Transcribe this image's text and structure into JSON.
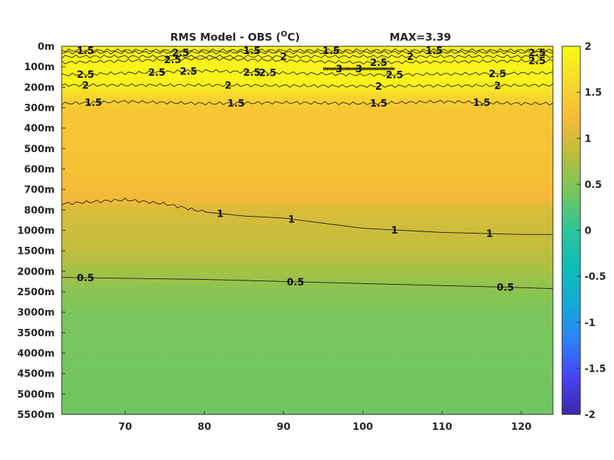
{
  "chart_data": {
    "type": "heatmap",
    "title": "RMS Model - OBS (",
    "title_unit": "O",
    "title_close": "C)",
    "max_label": "MAX=3.39",
    "xlabel": "",
    "ylabel": "",
    "xlim": [
      62,
      124
    ],
    "x_ticks": [
      70,
      80,
      90,
      100,
      110,
      120
    ],
    "x_tick_labels": [
      "70",
      "80",
      "90",
      "100",
      "110",
      "120"
    ],
    "y_tick_labels": [
      "0m",
      "100m",
      "200m",
      "300m",
      "400m",
      "500m",
      "600m",
      "700m",
      "800m",
      "1000m",
      "1500m",
      "2000m",
      "2500m",
      "3000m",
      "3500m",
      "4000m",
      "4500m",
      "5000m",
      "5500m"
    ],
    "colorbar": {
      "clim": [
        -2,
        2
      ],
      "ticks": [
        2,
        1.5,
        1,
        0.5,
        0,
        -0.5,
        -1,
        -1.5,
        -2
      ],
      "tick_labels": [
        "2",
        "1.5",
        "1",
        "0.5",
        "0",
        "-0.5",
        "-1",
        "-1.5",
        "-2"
      ],
      "colormap": "parula",
      "colors": [
        "#3e26a8",
        "#4743f4",
        "#2d81f8",
        "#15aad6",
        "#0fbcb8",
        "#2cc59a",
        "#71c65f",
        "#b6bf3c",
        "#f5b939",
        "#f8d82c",
        "#f9fb15"
      ]
    },
    "depth_profile": [
      {
        "level": 0,
        "value": 1.9
      },
      {
        "level": 1,
        "value": 1.9
      },
      {
        "level": 1.8,
        "value": 1.9
      },
      {
        "level": 2.4,
        "value": 1.6
      },
      {
        "level": 3,
        "value": 1.38
      },
      {
        "level": 6,
        "value": 1.32
      },
      {
        "level": 7.5,
        "value": 1.2
      },
      {
        "level": 8,
        "value": 1.02
      },
      {
        "level": 10,
        "value": 0.86
      },
      {
        "level": 11,
        "value": 0.7
      },
      {
        "level": 12,
        "value": 0.55
      },
      {
        "level": 13,
        "value": 0.45
      },
      {
        "level": 18,
        "value": 0.38
      }
    ],
    "contours": [
      {
        "value": 0.5,
        "label": "0.5",
        "x": [
          62,
          80,
          90,
          100,
          110,
          120,
          124
        ],
        "y_level": [
          11.3,
          11.4,
          11.5,
          11.6,
          11.7,
          11.8,
          11.85
        ],
        "labels_at": [
          65,
          91.5,
          118
        ]
      },
      {
        "value": 1,
        "label": "1",
        "x": [
          62,
          70,
          75,
          80,
          85,
          90,
          100,
          110,
          120,
          124
        ],
        "y_level": [
          7.7,
          7.5,
          7.7,
          8.1,
          8.3,
          8.4,
          8.9,
          9.1,
          9.2,
          9.2
        ],
        "labels_at": [
          82,
          91,
          104,
          116
        ]
      },
      {
        "value": 1.5,
        "label": "1.5",
        "x": [
          62,
          70,
          80,
          90,
          100,
          110,
          120,
          124
        ],
        "y_level": [
          2.8,
          2.7,
          2.8,
          2.75,
          2.8,
          2.7,
          2.8,
          2.8
        ],
        "labels_at": [
          66,
          84,
          102,
          115
        ]
      },
      {
        "value": 2,
        "label": "2",
        "x": [
          62,
          80,
          100,
          124
        ],
        "y_level": [
          1.9,
          1.9,
          1.95,
          1.9
        ],
        "labels_at": [
          65,
          83,
          102,
          117
        ]
      },
      {
        "value": 2.5,
        "label": "2.5",
        "x": [
          62,
          80,
          100,
          124
        ],
        "y_level": [
          1.4,
          1.2,
          1.4,
          1.3
        ],
        "labels_at": [
          65,
          74,
          78,
          86,
          88,
          104,
          117
        ]
      },
      {
        "value": 2.5,
        "label": "2.5",
        "x": [
          62,
          80,
          100,
          124
        ],
        "y_level": [
          0.8,
          0.6,
          0.8,
          0.7
        ],
        "labels_at": [
          76,
          102,
          122
        ]
      },
      {
        "value": 1.5,
        "label": "1.5",
        "x": [
          62,
          80,
          100,
          124
        ],
        "y_level": [
          0.2,
          0.2,
          0.2,
          0.2
        ],
        "labels_at": [
          65,
          86,
          96,
          109
        ]
      },
      {
        "value": 2.5,
        "label": "2.5",
        "x": [
          62,
          80,
          100,
          124
        ],
        "y_level": [
          0.3,
          0.3,
          0.3,
          0.3
        ],
        "labels_at": [
          77,
          122
        ]
      },
      {
        "value": 2,
        "label": "2",
        "x": [
          62,
          90,
          124
        ],
        "y_level": [
          0.5,
          0.5,
          0.5
        ],
        "labels_at": [
          90,
          106
        ]
      },
      {
        "value": 3,
        "label": "3",
        "x": [
          95,
          100,
          104
        ],
        "y_level": [
          1.1,
          1.1,
          1.1
        ],
        "labels_at": [
          97,
          99.5
        ]
      }
    ]
  }
}
